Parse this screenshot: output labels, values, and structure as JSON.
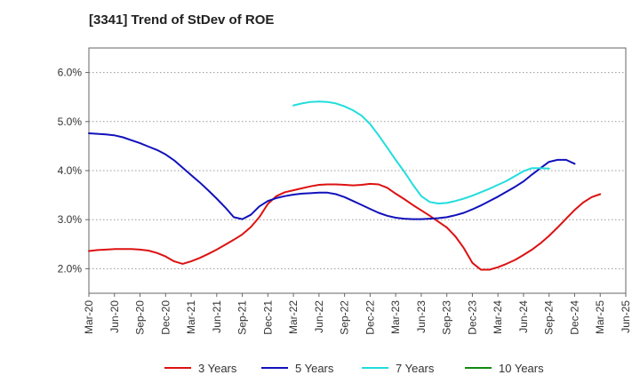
{
  "chart_data": {
    "type": "line",
    "title": "[3341]  Trend of StDev of ROE",
    "xlabel": "",
    "ylabel": "",
    "x_tick_labels": [
      "Mar-20",
      "Jun-20",
      "Sep-20",
      "Dec-20",
      "Mar-21",
      "Jun-21",
      "Sep-21",
      "Dec-21",
      "Mar-22",
      "Jun-22",
      "Sep-22",
      "Dec-22",
      "Mar-23",
      "Jun-23",
      "Sep-23",
      "Dec-23",
      "Mar-24",
      "Jun-24",
      "Sep-24",
      "Dec-24",
      "Mar-25",
      "Jun-25"
    ],
    "y_ticks": [
      2.0,
      3.0,
      4.0,
      5.0,
      6.0
    ],
    "y_tick_labels": [
      "2.0%",
      "3.0%",
      "4.0%",
      "5.0%",
      "6.0%"
    ],
    "ylim": [
      1.5,
      6.5
    ],
    "grid": "horizontal dotted",
    "legend_position": "bottom",
    "series": [
      {
        "name": "3 Years",
        "color": "#dd1111",
        "points": [
          [
            "Mar-20",
            2.36
          ],
          [
            "Apr-20",
            2.38
          ],
          [
            "May-20",
            2.39
          ],
          [
            "Jun-20",
            2.4
          ],
          [
            "Jul-20",
            2.4
          ],
          [
            "Aug-20",
            2.4
          ],
          [
            "Sep-20",
            2.39
          ],
          [
            "Oct-20",
            2.37
          ],
          [
            "Nov-20",
            2.32
          ],
          [
            "Dec-20",
            2.25
          ],
          [
            "Jan-21",
            2.15
          ],
          [
            "Feb-21",
            2.1
          ],
          [
            "Mar-21",
            2.15
          ],
          [
            "Apr-21",
            2.22
          ],
          [
            "May-21",
            2.3
          ],
          [
            "Jun-21",
            2.39
          ],
          [
            "Jul-21",
            2.49
          ],
          [
            "Aug-21",
            2.59
          ],
          [
            "Sep-21",
            2.7
          ],
          [
            "Oct-21",
            2.85
          ],
          [
            "Nov-21",
            3.05
          ],
          [
            "Dec-21",
            3.32
          ],
          [
            "Jan-22",
            3.48
          ],
          [
            "Feb-22",
            3.56
          ],
          [
            "Mar-22",
            3.6
          ],
          [
            "Apr-22",
            3.64
          ],
          [
            "May-22",
            3.68
          ],
          [
            "Jun-22",
            3.71
          ],
          [
            "Jul-22",
            3.72
          ],
          [
            "Aug-22",
            3.72
          ],
          [
            "Sep-22",
            3.71
          ],
          [
            "Oct-22",
            3.7
          ],
          [
            "Nov-22",
            3.71
          ],
          [
            "Dec-22",
            3.73
          ],
          [
            "Jan-23",
            3.72
          ],
          [
            "Feb-23",
            3.65
          ],
          [
            "Mar-23",
            3.53
          ],
          [
            "Apr-23",
            3.42
          ],
          [
            "May-23",
            3.3
          ],
          [
            "Jun-23",
            3.19
          ],
          [
            "Jul-23",
            3.08
          ],
          [
            "Aug-23",
            2.96
          ],
          [
            "Sep-23",
            2.84
          ],
          [
            "Oct-23",
            2.66
          ],
          [
            "Nov-23",
            2.42
          ],
          [
            "Dec-23",
            2.12
          ],
          [
            "Jan-24",
            1.98
          ],
          [
            "Feb-24",
            1.98
          ],
          [
            "Mar-24",
            2.03
          ],
          [
            "Apr-24",
            2.1
          ],
          [
            "May-24",
            2.18
          ],
          [
            "Jun-24",
            2.28
          ],
          [
            "Jul-24",
            2.39
          ],
          [
            "Aug-24",
            2.52
          ],
          [
            "Sep-24",
            2.67
          ],
          [
            "Oct-24",
            2.84
          ],
          [
            "Nov-24",
            3.02
          ],
          [
            "Dec-24",
            3.2
          ],
          [
            "Jan-25",
            3.35
          ],
          [
            "Feb-25",
            3.46
          ],
          [
            "Mar-25",
            3.52
          ]
        ]
      },
      {
        "name": "5 Years",
        "color": "#1111bb",
        "points": [
          [
            "Mar-20",
            4.76
          ],
          [
            "Apr-20",
            4.75
          ],
          [
            "May-20",
            4.74
          ],
          [
            "Jun-20",
            4.72
          ],
          [
            "Jul-20",
            4.68
          ],
          [
            "Aug-20",
            4.62
          ],
          [
            "Sep-20",
            4.56
          ],
          [
            "Oct-20",
            4.49
          ],
          [
            "Nov-20",
            4.42
          ],
          [
            "Dec-20",
            4.33
          ],
          [
            "Jan-21",
            4.21
          ],
          [
            "Feb-21",
            4.06
          ],
          [
            "Mar-21",
            3.91
          ],
          [
            "Apr-21",
            3.76
          ],
          [
            "May-21",
            3.6
          ],
          [
            "Jun-21",
            3.43
          ],
          [
            "Jul-21",
            3.25
          ],
          [
            "Aug-21",
            3.05
          ],
          [
            "Sep-21",
            3.01
          ],
          [
            "Oct-21",
            3.1
          ],
          [
            "Nov-21",
            3.27
          ],
          [
            "Dec-21",
            3.38
          ],
          [
            "Jan-22",
            3.44
          ],
          [
            "Feb-22",
            3.48
          ],
          [
            "Mar-22",
            3.51
          ],
          [
            "Apr-22",
            3.53
          ],
          [
            "May-22",
            3.54
          ],
          [
            "Jun-22",
            3.55
          ],
          [
            "Jul-22",
            3.55
          ],
          [
            "Aug-22",
            3.52
          ],
          [
            "Sep-22",
            3.46
          ],
          [
            "Oct-22",
            3.38
          ],
          [
            "Nov-22",
            3.3
          ],
          [
            "Dec-22",
            3.22
          ],
          [
            "Jan-23",
            3.14
          ],
          [
            "Feb-23",
            3.08
          ],
          [
            "Mar-23",
            3.04
          ],
          [
            "Apr-23",
            3.02
          ],
          [
            "May-23",
            3.01
          ],
          [
            "Jun-23",
            3.01
          ],
          [
            "Jul-23",
            3.02
          ],
          [
            "Aug-23",
            3.03
          ],
          [
            "Sep-23",
            3.05
          ],
          [
            "Oct-23",
            3.09
          ],
          [
            "Nov-23",
            3.14
          ],
          [
            "Dec-23",
            3.21
          ],
          [
            "Jan-24",
            3.29
          ],
          [
            "Feb-24",
            3.38
          ],
          [
            "Mar-24",
            3.47
          ],
          [
            "Apr-24",
            3.57
          ],
          [
            "May-24",
            3.67
          ],
          [
            "Jun-24",
            3.78
          ],
          [
            "Jul-24",
            3.92
          ],
          [
            "Aug-24",
            4.05
          ],
          [
            "Sep-24",
            4.18
          ],
          [
            "Oct-24",
            4.22
          ],
          [
            "Nov-24",
            4.22
          ],
          [
            "Dec-24",
            4.14
          ]
        ]
      },
      {
        "name": "7 Years",
        "color": "#22dddd",
        "points": [
          [
            "Mar-22",
            5.33
          ],
          [
            "Apr-22",
            5.37
          ],
          [
            "May-22",
            5.4
          ],
          [
            "Jun-22",
            5.41
          ],
          [
            "Jul-22",
            5.4
          ],
          [
            "Aug-22",
            5.37
          ],
          [
            "Sep-22",
            5.31
          ],
          [
            "Oct-22",
            5.23
          ],
          [
            "Nov-22",
            5.12
          ],
          [
            "Dec-22",
            4.95
          ],
          [
            "Jan-23",
            4.72
          ],
          [
            "Feb-23",
            4.47
          ],
          [
            "Mar-23",
            4.22
          ],
          [
            "Apr-23",
            3.98
          ],
          [
            "May-23",
            3.72
          ],
          [
            "Jun-23",
            3.48
          ],
          [
            "Jul-23",
            3.36
          ],
          [
            "Aug-23",
            3.33
          ],
          [
            "Sep-23",
            3.34
          ],
          [
            "Oct-23",
            3.38
          ],
          [
            "Nov-23",
            3.43
          ],
          [
            "Dec-23",
            3.49
          ],
          [
            "Jan-24",
            3.56
          ],
          [
            "Feb-24",
            3.63
          ],
          [
            "Mar-24",
            3.71
          ],
          [
            "Apr-24",
            3.79
          ],
          [
            "May-24",
            3.89
          ],
          [
            "Jun-24",
            3.99
          ],
          [
            "Jul-24",
            4.05
          ],
          [
            "Aug-24",
            4.05
          ],
          [
            "Sep-24",
            4.04
          ]
        ]
      },
      {
        "name": "10 Years",
        "color": "#118811",
        "points": []
      }
    ]
  }
}
